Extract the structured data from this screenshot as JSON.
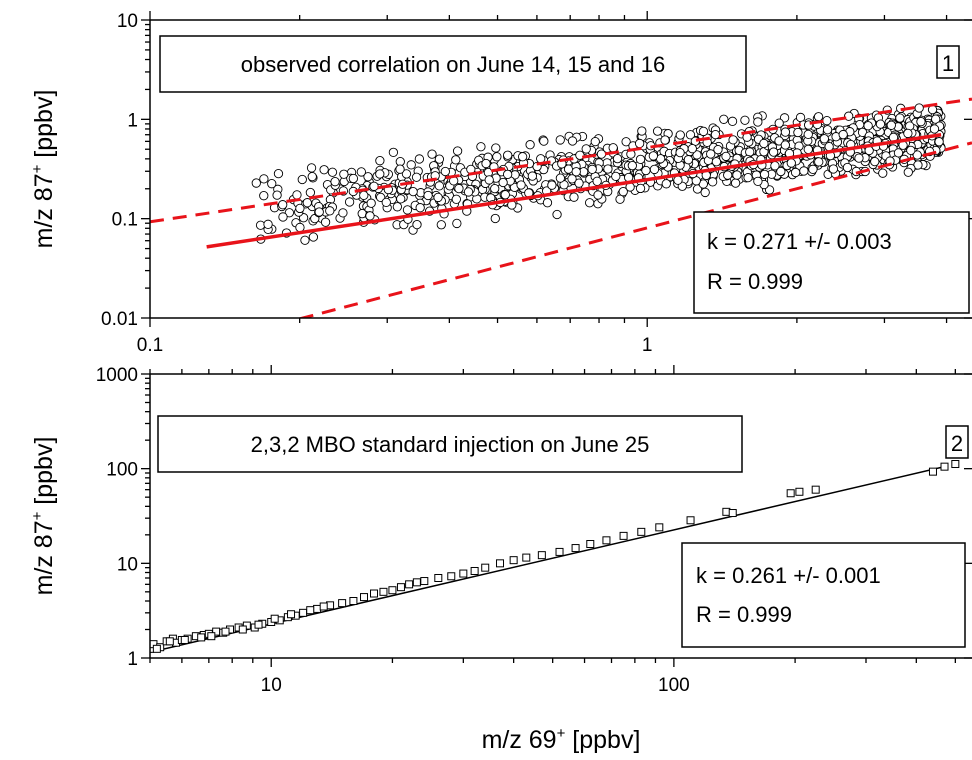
{
  "figure": {
    "xlabel": "m/z 69",
    "xlabel_sup": "+",
    "xlabel_unit": " [ppbv]"
  },
  "chart_data": [
    {
      "panel": "1",
      "type": "scatter",
      "title": "observed correlation on June 14, 15 and 16",
      "xlabel": "",
      "ylabel": "m/z 87",
      "ylabel_sup": "+",
      "ylabel_unit": " [ppbv]",
      "xscale": "log",
      "yscale": "log",
      "xlim": [
        0.1,
        4.5
      ],
      "ylim": [
        0.01,
        10
      ],
      "xticks": [
        0.1,
        1
      ],
      "xtick_labels": [
        "0.1",
        "1"
      ],
      "yticks": [
        0.01,
        0.1,
        1,
        10
      ],
      "ytick_labels": [
        "0.01",
        "0.1",
        "1",
        "10"
      ],
      "grid": false,
      "legend": "none",
      "fit": {
        "k_text": "k = 0.271 +/- 0.003",
        "r_text": "R = 0.999",
        "line": {
          "x": [
            0.13,
            3.9
          ],
          "y": [
            0.052,
            0.7
          ],
          "color": "#e8131a",
          "style": "solid"
        },
        "bounds": [
          {
            "x": [
              0.1,
              4.5
            ],
            "y": [
              0.093,
              1.6
            ],
            "color": "#e8131a",
            "style": "dashed"
          },
          {
            "x": [
              0.2,
              4.5
            ],
            "y": [
              0.0098,
              0.58
            ],
            "color": "#e8131a",
            "style": "dashed"
          }
        ]
      },
      "cloud": {
        "description_points": "dense cloud of observed values",
        "x_range": [
          0.16,
          3.9
        ],
        "y_center_at_x0": 0.13,
        "y_center_x0": 0.13,
        "y_center_x1": 3.9,
        "y_center_at_x1": 0.7,
        "log_spread": 0.28,
        "n": 1400
      },
      "marker": "circle-open"
    },
    {
      "panel": "2",
      "type": "scatter",
      "title": "2,3,2 MBO standard injection on June 25",
      "xlabel": "m/z 69+ [ppbv]",
      "ylabel": "m/z 87",
      "ylabel_sup": "+",
      "ylabel_unit": " [ppbv]",
      "xscale": "log",
      "yscale": "log",
      "xlim": [
        5,
        550
      ],
      "ylim": [
        1,
        1000
      ],
      "xticks": [
        10,
        100
      ],
      "xtick_labels": [
        "10",
        "100"
      ],
      "yticks": [
        1,
        10,
        100,
        1000
      ],
      "ytick_labels": [
        "1",
        "10",
        "100",
        "1000"
      ],
      "grid": false,
      "legend": "none",
      "fit": {
        "k_text": "k = 0.261 +/- 0.001",
        "r_text": "R = 0.999",
        "line": {
          "x": [
            5,
            470
          ],
          "y": [
            1.15,
            105
          ],
          "color": "#000000",
          "style": "solid"
        }
      },
      "marker": "square-open",
      "x": [
        5.0,
        5.1,
        5.3,
        5.5,
        5.7,
        5.8,
        6.0,
        6.2,
        6.5,
        6.8,
        7.0,
        7.3,
        7.6,
        7.9,
        8.3,
        8.7,
        9.1,
        9.5,
        10.0,
        10.5,
        11.0,
        11.5,
        12.0,
        13.0,
        14.0,
        15.0,
        16.0,
        17.0,
        18.0,
        19.0,
        20.0,
        21.0,
        22.0,
        23.0,
        24.0,
        26.0,
        28.0,
        30.0,
        32.0,
        34.0,
        37.0,
        40.0,
        43.0,
        47.0,
        52.0,
        57.0,
        62.0,
        68.0,
        75.0,
        83.0,
        92.0,
        110.0,
        135.0,
        140.0,
        195.0,
        205.0,
        225.0,
        440.0,
        470.0,
        500.0,
        5.2,
        5.6,
        6.1,
        6.7,
        7.1,
        7.7,
        8.5,
        9.3,
        10.2,
        11.2,
        12.5,
        13.5
      ],
      "y": [
        1.25,
        1.4,
        1.3,
        1.5,
        1.6,
        1.45,
        1.55,
        1.6,
        1.7,
        1.75,
        1.8,
        1.9,
        1.85,
        2.0,
        2.1,
        2.2,
        2.1,
        2.3,
        2.4,
        2.5,
        2.7,
        2.8,
        3.0,
        3.3,
        3.6,
        3.8,
        4.0,
        4.4,
        4.8,
        5.0,
        5.2,
        5.6,
        6.0,
        6.3,
        6.5,
        7.0,
        7.3,
        7.8,
        8.3,
        9.0,
        10.0,
        10.8,
        11.5,
        12.2,
        13.2,
        14.5,
        16.0,
        17.5,
        19.5,
        21.5,
        24.0,
        28.5,
        35.0,
        34.0,
        55.0,
        57.0,
        60.0,
        93.0,
        105.0,
        112.0,
        1.25,
        1.5,
        1.55,
        1.65,
        1.7,
        1.9,
        2.0,
        2.25,
        2.6,
        2.9,
        3.2,
        3.5
      ]
    }
  ]
}
